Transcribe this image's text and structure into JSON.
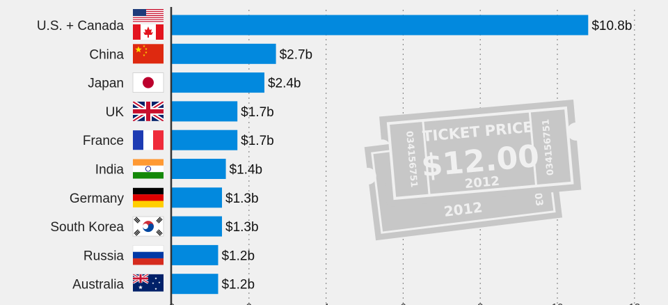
{
  "chart_data": {
    "type": "bar",
    "orientation": "horizontal",
    "categories": [
      "U.S. + Canada",
      "China",
      "Japan",
      "UK",
      "France",
      "India",
      "Germany",
      "South Korea",
      "Russia",
      "Australia"
    ],
    "values": [
      10.8,
      2.7,
      2.4,
      1.7,
      1.7,
      1.4,
      1.3,
      1.3,
      1.2,
      1.2
    ],
    "value_labels": [
      "$10.8b",
      "$2.7b",
      "$2.4b",
      "$1.7b",
      "$1.7b",
      "$1.4b",
      "$1.3b",
      "$1.3b",
      "$1.2b",
      "$1.2b"
    ],
    "flag_icons": [
      [
        "us-flag-icon",
        "canada-flag-icon"
      ],
      [
        "china-flag-icon"
      ],
      [
        "japan-flag-icon"
      ],
      [
        "uk-flag-icon"
      ],
      [
        "france-flag-icon"
      ],
      [
        "india-flag-icon"
      ],
      [
        "germany-flag-icon"
      ],
      [
        "south-korea-flag-icon"
      ],
      [
        "russia-flag-icon"
      ],
      [
        "australia-flag-icon"
      ]
    ],
    "xlim": [
      0,
      12
    ],
    "x_gridlines": [
      2,
      4,
      6,
      8,
      10,
      12
    ],
    "grid": "vertical dotted",
    "bar_color": "#0289de",
    "title": "",
    "xlabel": "",
    "ylabel": ""
  },
  "watermark": {
    "icon": "ticket-icon",
    "heading": "TICKET PRICE",
    "price": "$12.00",
    "year": "2012",
    "serial": "034156751",
    "color": "#c7c7c7"
  }
}
